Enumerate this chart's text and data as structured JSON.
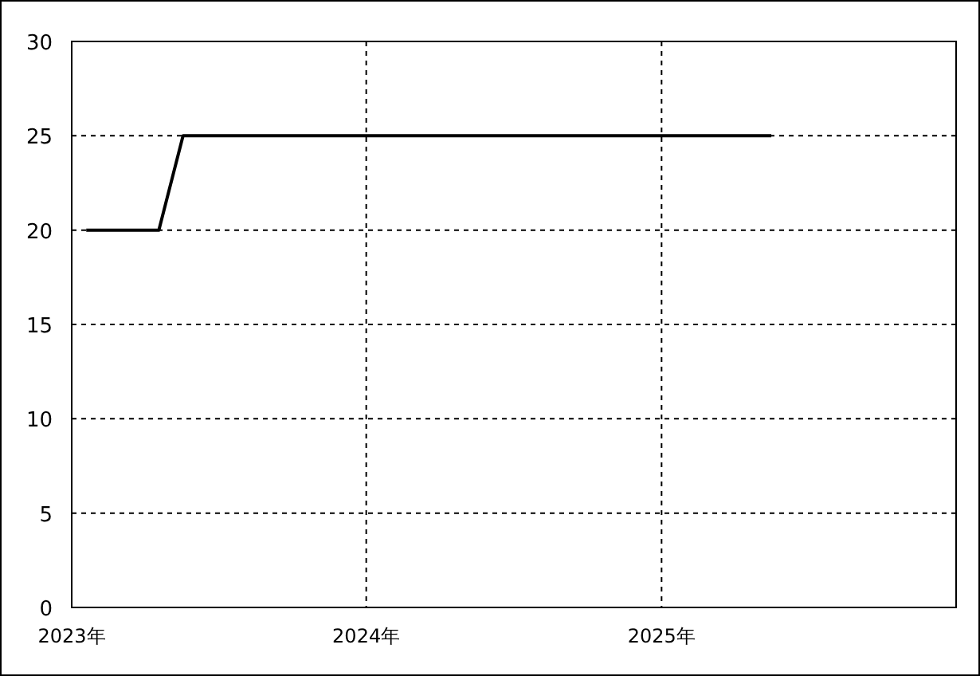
{
  "chart_data": {
    "type": "line",
    "series": [
      {
        "color": "#000000",
        "x": [
          "2023-01-19",
          "2023-04-19",
          "2023-05-19",
          "2025-05-17"
        ],
        "values": [
          20,
          20,
          25,
          25
        ]
      }
    ],
    "xlim": [
      "2023-01-01",
      "2026-01-01"
    ],
    "xticks": [
      {
        "value": "2023-01-01",
        "label": "2023年"
      },
      {
        "value": "2024-01-01",
        "label": "2024年"
      },
      {
        "value": "2025-01-01",
        "label": "2025年"
      }
    ],
    "ylim": [
      0,
      30
    ],
    "yticks": [
      0,
      5,
      10,
      15,
      20,
      25,
      30
    ],
    "grid": true,
    "marker": "none",
    "line_style": "solid"
  }
}
